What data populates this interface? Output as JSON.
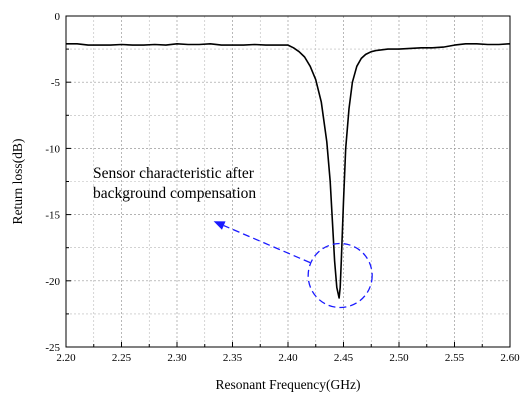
{
  "chart_data": {
    "type": "line",
    "title": "",
    "xlabel": "Resonant Frequency(GHz)",
    "ylabel": "Return loss(dB)",
    "xlim": [
      2.2,
      2.6
    ],
    "ylim": [
      -25,
      0
    ],
    "x_ticks": [
      "2.20",
      "2.25",
      "2.30",
      "2.35",
      "2.40",
      "2.45",
      "2.50",
      "2.55",
      "2.60"
    ],
    "y_ticks": [
      "0",
      "-5",
      "-10",
      "-15",
      "-20",
      "-25"
    ],
    "grid": true,
    "legend": "none",
    "series": [
      {
        "color": "#000000",
        "x": [
          2.2,
          2.21,
          2.22,
          2.23,
          2.24,
          2.25,
          2.26,
          2.27,
          2.28,
          2.29,
          2.3,
          2.31,
          2.32,
          2.33,
          2.34,
          2.35,
          2.36,
          2.37,
          2.38,
          2.39,
          2.4,
          2.405,
          2.41,
          2.415,
          2.42,
          2.425,
          2.43,
          2.435,
          2.438,
          2.44,
          2.442,
          2.444,
          2.446,
          2.447,
          2.448,
          2.45,
          2.452,
          2.455,
          2.458,
          2.462,
          2.466,
          2.47,
          2.475,
          2.48,
          2.49,
          2.5,
          2.51,
          2.52,
          2.53,
          2.54,
          2.55,
          2.56,
          2.57,
          2.58,
          2.59,
          2.6
        ],
        "y": [
          -2.1,
          -2.1,
          -2.2,
          -2.2,
          -2.2,
          -2.15,
          -2.2,
          -2.2,
          -2.15,
          -2.2,
          -2.1,
          -2.15,
          -2.15,
          -2.1,
          -2.2,
          -2.2,
          -2.2,
          -2.15,
          -2.2,
          -2.2,
          -2.2,
          -2.4,
          -2.7,
          -3.1,
          -3.8,
          -4.8,
          -6.5,
          -9.5,
          -12.5,
          -15.5,
          -18.5,
          -20.5,
          -21.3,
          -20.5,
          -18.5,
          -14.0,
          -10.0,
          -7.0,
          -5.0,
          -3.8,
          -3.2,
          -2.9,
          -2.7,
          -2.6,
          -2.5,
          -2.5,
          -2.45,
          -2.4,
          -2.4,
          -2.35,
          -2.2,
          -2.1,
          -2.1,
          -2.15,
          -2.15,
          -2.1
        ]
      }
    ],
    "annotation": {
      "lines": [
        "Sensor characteristic after",
        "background compensation"
      ],
      "color": "#1a1aff",
      "circle_center": [
        2.447,
        -19.6
      ],
      "arrow_target": [
        2.333,
        -15.5
      ]
    }
  }
}
